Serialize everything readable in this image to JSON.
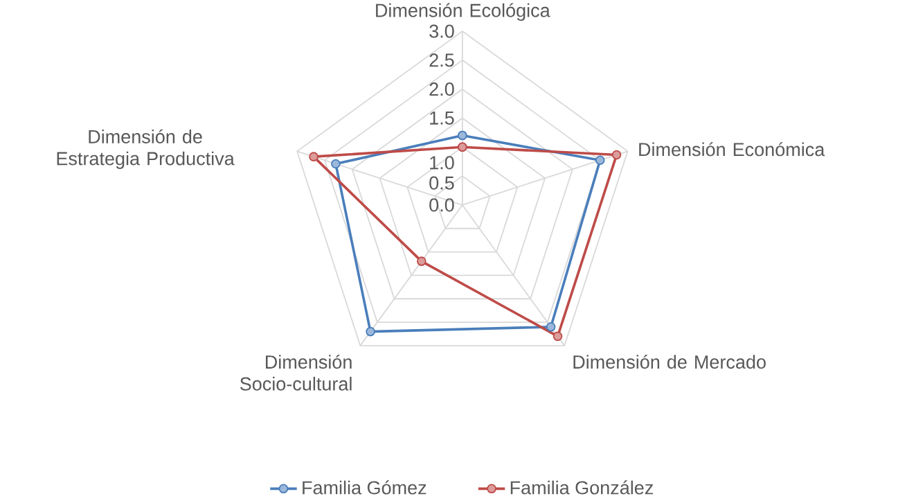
{
  "chart_data": {
    "type": "radar",
    "categories": [
      "Dimensión Ecológica",
      "Dimensión Económica",
      "Dimensión de Mercado",
      "Dimensión Socio-cultural",
      "Dimensión de Estrategia Productiva"
    ],
    "series": [
      {
        "name": "Familia Gómez",
        "color": "#4a7ebb",
        "values": [
          1.2,
          2.5,
          2.6,
          2.7,
          2.3
        ]
      },
      {
        "name": "Familia González",
        "color": "#be4b48",
        "values": [
          1.0,
          2.8,
          2.8,
          1.2,
          2.7
        ]
      }
    ],
    "ylim": [
      0,
      3
    ],
    "yticks": [
      {
        "value": 0,
        "label": "0.0"
      },
      0.5,
      {
        "value": 1,
        "label": "1.0"
      },
      1.5,
      {
        "value": 2,
        "label": "2.0"
      },
      2.5,
      {
        "value": 3,
        "label": "3.0"
      }
    ],
    "grid": true,
    "legend": "bottom",
    "marker": "circle",
    "line_style": "solid"
  }
}
